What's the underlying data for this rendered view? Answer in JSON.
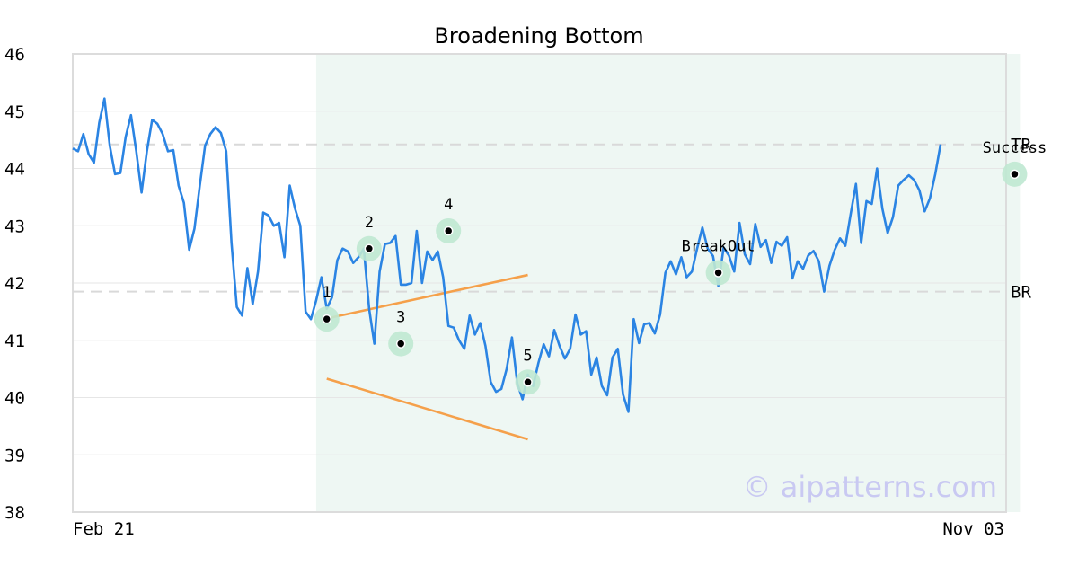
{
  "chart_data": {
    "type": "line",
    "title": "Broadening Bottom",
    "y_ticks": [
      "38",
      "39",
      "40",
      "41",
      "42",
      "43",
      "44",
      "45",
      "46"
    ],
    "ylim": [
      38,
      46
    ],
    "x_tick_labels": [
      "Feb 21",
      "Nov 03"
    ],
    "watermark": "© aipatterns.com",
    "colors": {
      "price_line": "#2b84e3",
      "trend_lines": "#f5a04a",
      "highlight_band": "#eef7f3",
      "marker_halo": "#bfe8d2",
      "reference_lines": "#d9d9d9"
    },
    "pattern_band_index_range": [
      46,
      179
    ],
    "horizontal_lines": [
      {
        "label": "TR",
        "value": 44.42
      },
      {
        "label": "BR",
        "value": 41.85
      }
    ],
    "trend_lines": [
      {
        "from": {
          "x": 48,
          "y": 41.38
        },
        "to": {
          "x": 86,
          "y": 42.14
        }
      },
      {
        "from": {
          "x": 48,
          "y": 40.33
        },
        "to": {
          "x": 86,
          "y": 39.27
        }
      }
    ],
    "annotations": [
      {
        "label": "1",
        "x": 48,
        "y": 41.37
      },
      {
        "label": "2",
        "x": 56,
        "y": 42.6
      },
      {
        "label": "3",
        "x": 62,
        "y": 40.94
      },
      {
        "label": "4",
        "x": 71,
        "y": 42.91
      },
      {
        "label": "5",
        "x": 86,
        "y": 40.27
      },
      {
        "label": "BreakOut",
        "x": 122,
        "y": 42.18
      },
      {
        "label": "Success",
        "x": 178,
        "y": 43.9
      }
    ],
    "series": [
      {
        "values": [
          44.35,
          44.3,
          44.6,
          44.25,
          44.1,
          44.8,
          45.22,
          44.4,
          43.9,
          43.92,
          44.55,
          44.93,
          44.3,
          43.58,
          44.3,
          44.85,
          44.78,
          44.6,
          44.3,
          44.32,
          43.7,
          43.4,
          42.58,
          42.95,
          43.7,
          44.4,
          44.6,
          44.72,
          44.62,
          44.3,
          42.7,
          41.58,
          41.43,
          42.26,
          41.63,
          42.2,
          43.23,
          43.18,
          43.0,
          43.05,
          42.45,
          43.7,
          43.3,
          43.0,
          41.5,
          41.37,
          41.7,
          42.1,
          41.55,
          41.75,
          42.4,
          42.6,
          42.55,
          42.35,
          42.45,
          42.6,
          41.55,
          40.94,
          42.2,
          42.68,
          42.7,
          42.82,
          41.97,
          41.97,
          42.0,
          42.91,
          42.0,
          42.55,
          42.4,
          42.55,
          42.1,
          41.25,
          41.22,
          41.0,
          40.85,
          41.43,
          41.1,
          41.3,
          40.9,
          40.27,
          40.1,
          40.15,
          40.5,
          41.05,
          40.25,
          39.97,
          40.4,
          40.2,
          40.6,
          40.93,
          40.72,
          41.18,
          40.9,
          40.68,
          40.85,
          41.45,
          41.1,
          41.16,
          40.4,
          40.7,
          40.2,
          40.04,
          40.7,
          40.85,
          40.05,
          39.75,
          41.37,
          40.95,
          41.28,
          41.3,
          41.12,
          41.45,
          42.18,
          42.38,
          42.15,
          42.45,
          42.1,
          42.2,
          42.6,
          42.97,
          42.6,
          42.47,
          41.95,
          42.62,
          42.48,
          42.2,
          43.05,
          42.5,
          42.33,
          43.03,
          42.63,
          42.75,
          42.35,
          42.72,
          42.65,
          42.8,
          42.08,
          42.38,
          42.25,
          42.48,
          42.56,
          42.38,
          41.85,
          42.3,
          42.58,
          42.78,
          42.65,
          43.2,
          43.73,
          42.7,
          43.43,
          43.38,
          44.0,
          43.3,
          42.87,
          43.15,
          43.7,
          43.8,
          43.88,
          43.8,
          43.62,
          43.25,
          43.48,
          43.9,
          44.42
        ]
      }
    ]
  }
}
